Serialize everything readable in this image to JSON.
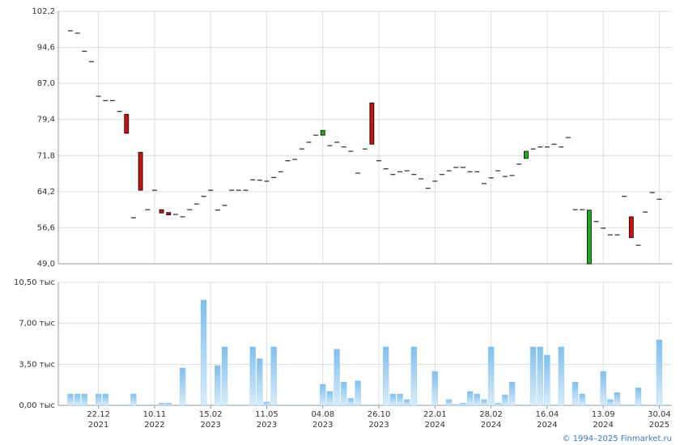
{
  "chart_data": [
    {
      "type": "candlestick",
      "up_color": "#22aa22",
      "down_color": "#cc1111",
      "flat_color": "#000000",
      "grid": true,
      "ylim": [
        49.0,
        102.2
      ],
      "yticks": [
        {
          "value": 49.0,
          "label": "49,0"
        },
        {
          "value": 56.6,
          "label": "56,6"
        },
        {
          "value": 64.2,
          "label": "64,2"
        },
        {
          "value": 71.8,
          "label": "71,8"
        },
        {
          "value": 79.4,
          "label": "79,4"
        },
        {
          "value": 87.0,
          "label": "87,0"
        },
        {
          "value": 94.6,
          "label": "94,6"
        },
        {
          "value": 102.2,
          "label": "102,2"
        }
      ],
      "open": [
        98.1,
        97.6,
        93.8,
        91.6,
        84.3,
        83.4,
        83.4,
        81.1,
        80.5,
        58.7,
        72.5,
        60.4,
        64.5,
        60.4,
        59.8,
        59.4,
        58.9,
        60.4,
        61.6,
        63.2,
        64.5,
        60.3,
        61.3,
        64.5,
        64.5,
        64.5,
        66.7,
        66.6,
        66.4,
        67.2,
        68.4,
        70.7,
        71.0,
        73.2,
        74.6,
        76.1,
        76.1,
        73.9,
        74.6,
        73.6,
        72.7,
        68.1,
        73.2,
        82.9,
        70.7,
        69.0,
        67.8,
        68.4,
        68.6,
        67.8,
        66.9,
        64.9,
        66.4,
        67.8,
        68.6,
        69.3,
        69.3,
        68.4,
        68.4,
        65.9,
        67.1,
        68.6,
        67.4,
        67.6,
        70.0,
        71.2,
        73.2,
        73.6,
        73.6,
        74.2,
        73.6,
        75.6,
        60.4,
        60.4,
        49.0,
        57.9,
        56.5,
        55.1,
        55.1,
        63.2,
        58.9,
        52.9,
        59.9,
        64.0,
        62.6
      ],
      "close": [
        98.1,
        97.6,
        93.8,
        91.6,
        84.3,
        83.4,
        83.4,
        81.1,
        76.5,
        58.7,
        64.5,
        60.4,
        64.5,
        59.7,
        59.3,
        59.4,
        58.9,
        60.4,
        61.6,
        63.2,
        64.5,
        60.3,
        61.3,
        64.5,
        64.5,
        64.5,
        66.7,
        66.6,
        66.4,
        67.2,
        68.4,
        70.7,
        71.0,
        73.2,
        74.6,
        76.1,
        77.1,
        73.9,
        74.6,
        73.6,
        72.7,
        68.1,
        73.2,
        74.2,
        70.7,
        69.0,
        67.8,
        68.4,
        68.6,
        67.8,
        66.9,
        64.9,
        66.4,
        67.8,
        68.6,
        69.3,
        69.3,
        68.4,
        68.4,
        65.9,
        67.1,
        68.6,
        67.4,
        67.6,
        70.0,
        72.7,
        73.2,
        73.6,
        73.6,
        74.2,
        73.6,
        75.6,
        60.4,
        60.4,
        60.3,
        57.9,
        56.5,
        55.1,
        55.1,
        63.2,
        54.5,
        52.9,
        59.9,
        64.0,
        62.6
      ]
    },
    {
      "type": "bar",
      "color": "#8cc6ee",
      "grid": true,
      "ylim": [
        0,
        10.5
      ],
      "yticks": [
        {
          "value": 0,
          "label": "0,00 тыс"
        },
        {
          "value": 3.5,
          "label": "3,50 тыс"
        },
        {
          "value": 7,
          "label": "7,00 тыс"
        },
        {
          "value": 10.5,
          "label": "10,50 тыс"
        }
      ],
      "categories": [
        null,
        null,
        null,
        null,
        [
          "22.12",
          "2021"
        ],
        null,
        null,
        null,
        null,
        null,
        null,
        null,
        [
          "10.11",
          "2022"
        ],
        null,
        null,
        null,
        null,
        null,
        null,
        null,
        [
          "15.02",
          "2023"
        ],
        null,
        null,
        null,
        null,
        null,
        null,
        null,
        [
          "11.05",
          "2023"
        ],
        null,
        null,
        null,
        null,
        null,
        null,
        null,
        [
          "04.08",
          "2023"
        ],
        null,
        null,
        null,
        null,
        null,
        null,
        null,
        [
          "26.10",
          "2023"
        ],
        null,
        null,
        null,
        null,
        null,
        null,
        null,
        [
          "22.01",
          "2024"
        ],
        null,
        null,
        null,
        null,
        null,
        null,
        null,
        [
          "28.02",
          "2024"
        ],
        null,
        null,
        null,
        null,
        null,
        null,
        null,
        [
          "16.04",
          "2024"
        ],
        null,
        null,
        null,
        null,
        null,
        null,
        null,
        [
          "13.09",
          "2024"
        ],
        null,
        null,
        null,
        null,
        null,
        null,
        null,
        [
          "30.04",
          "2025"
        ]
      ],
      "values": [
        0.97,
        0.97,
        0.97,
        0.05,
        0.97,
        0.97,
        0.05,
        0.05,
        0.05,
        0.97,
        0.05,
        0.05,
        0.05,
        0.2,
        0.2,
        0.05,
        3.2,
        0.05,
        0.05,
        9.0,
        0.05,
        3.4,
        5.0,
        0.05,
        0.05,
        0.05,
        5.0,
        4.0,
        0.3,
        5.0,
        0.05,
        0.05,
        0.05,
        0.05,
        0.05,
        0.05,
        1.8,
        1.2,
        4.8,
        2.0,
        0.6,
        2.1,
        0.05,
        0.05,
        0.05,
        5.0,
        0.97,
        0.97,
        0.5,
        5.0,
        0.05,
        0.05,
        2.9,
        0.05,
        0.5,
        0.1,
        0.2,
        1.2,
        0.97,
        0.5,
        5.0,
        0.2,
        0.9,
        2.0,
        0.05,
        0.05,
        5.0,
        5.0,
        4.3,
        0.05,
        5.0,
        0.05,
        2.0,
        0.97,
        0.05,
        0.05,
        2.9,
        0.5,
        1.1,
        0.05,
        0.05,
        1.5,
        0.05,
        0.05,
        5.6
      ]
    }
  ],
  "footer": "© 1994–2025 Finmarket.ru"
}
